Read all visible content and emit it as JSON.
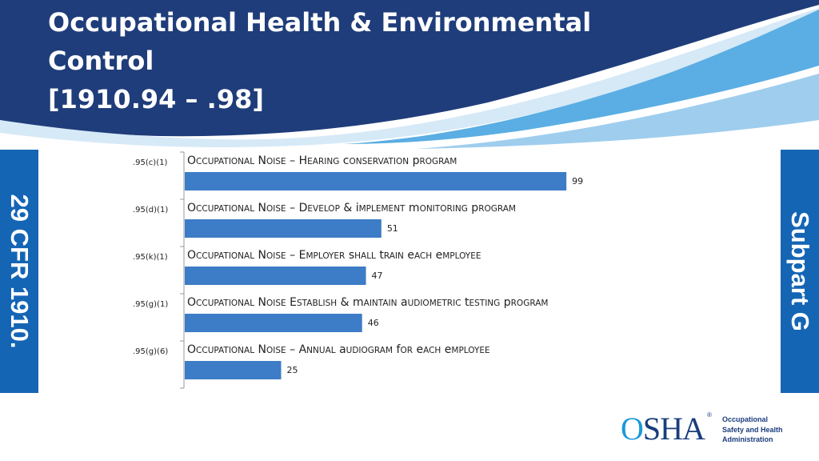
{
  "title": {
    "line1": "Occupational Health & Environmental",
    "line2": "Control",
    "line3": "[1910.94 – .98]"
  },
  "left_tab": "29 CFR 1910.",
  "right_tab": "Subpart G",
  "logo": {
    "wordmark": "OSHA",
    "registered": "®",
    "line1": "Occupational",
    "line2": "Safety and Health",
    "line3": "Administration"
  },
  "colors": {
    "header_dark": "#1f3d7a",
    "header_light": "#5aaee3",
    "tab_blue": "#1565b5",
    "bar_blue": "#3d7cc6"
  },
  "chart_data": {
    "type": "bar",
    "orientation": "horizontal",
    "categories": [
      ".95(c)(1)",
      ".95(d)(1)",
      ".95(k)(1)",
      ".95(g)(1)",
      ".95(g)(6)"
    ],
    "labels": [
      "Occupational Noise – Hearing conservation program",
      "Occupational Noise – Develop & implement monitoring program",
      "Occupational Noise – Employer shall train each employee",
      "Occupational Noise Establish & maintain audiometric testing program",
      "Occupational Noise – Annual audiogram for each employee"
    ],
    "values": [
      99,
      51,
      47,
      46,
      25
    ],
    "xlim": [
      0,
      100
    ],
    "grid": false,
    "legend": "none"
  }
}
